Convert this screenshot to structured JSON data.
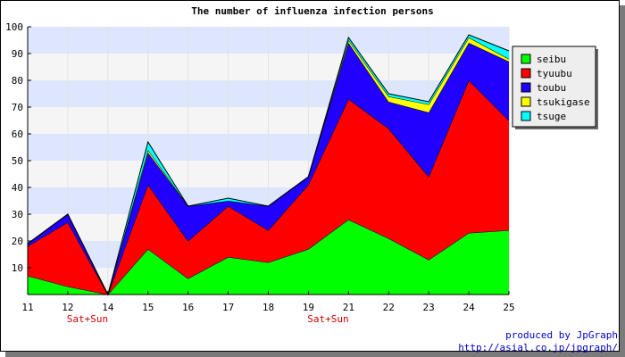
{
  "chart_data": {
    "type": "area",
    "stacked": true,
    "title": "The number of influenza infection persons",
    "categories": [
      "11",
      "12",
      "14",
      "15",
      "16",
      "17",
      "18",
      "19",
      "21",
      "22",
      "23",
      "24",
      "25"
    ],
    "category_notes": [
      "",
      "Sat+Sun",
      "",
      "",
      "",
      "",
      "",
      "Sat+Sun",
      "",
      "",
      "",
      "",
      ""
    ],
    "ylim": [
      0,
      100
    ],
    "yticks": [
      10,
      20,
      30,
      40,
      50,
      60,
      70,
      80,
      90,
      100
    ],
    "grid": true,
    "legend_position": "right",
    "series": [
      {
        "name": "seibu",
        "color": "#00ff00",
        "values": [
          7,
          3,
          0,
          17,
          6,
          14,
          12,
          17,
          28,
          21,
          13,
          23,
          24
        ]
      },
      {
        "name": "tyuubu",
        "color": "#ff0000",
        "values": [
          11,
          24,
          0,
          24,
          14,
          19,
          12,
          24,
          45,
          41,
          31,
          57,
          41
        ]
      },
      {
        "name": "toubu",
        "color": "#2000ff",
        "values": [
          1,
          3,
          0,
          12,
          13,
          2,
          9,
          3,
          21,
          10,
          24,
          14,
          22
        ]
      },
      {
        "name": "tsukigase",
        "color": "#ffff00",
        "values": [
          0,
          0,
          0,
          1,
          0,
          0,
          0,
          0,
          1,
          2,
          3,
          2,
          1
        ]
      },
      {
        "name": "tsuge",
        "color": "#00ffff",
        "values": [
          0,
          0,
          0,
          3,
          0,
          1,
          0,
          0,
          1,
          1,
          1,
          1,
          3
        ]
      }
    ]
  },
  "footer": {
    "line1": "produced by JpGraph",
    "line2": "http://asial.co.jp/jpgraph/"
  }
}
